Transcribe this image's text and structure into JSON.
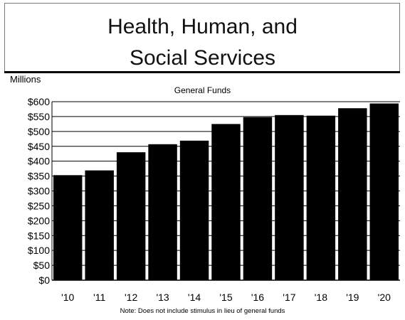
{
  "header": {
    "title_line1": "Health, Human, and",
    "title_line2": "Social Services"
  },
  "chart_data": {
    "type": "bar",
    "title": "General Funds",
    "ylabel": "Millions",
    "xlabel": "",
    "categories": [
      "'10",
      "'11",
      "'12",
      "'13",
      "'14",
      "'15",
      "'16",
      "'17",
      "'18",
      "'19",
      "'20"
    ],
    "values": [
      353,
      369,
      430,
      457,
      469,
      525,
      548,
      555,
      553,
      578,
      594
    ],
    "ylim": [
      0,
      600
    ],
    "yticks": [
      0,
      50,
      100,
      150,
      200,
      250,
      300,
      350,
      400,
      450,
      500,
      550,
      600
    ],
    "ytick_labels": [
      "$0",
      "$50",
      "$100",
      "$150",
      "$200",
      "$250",
      "$300",
      "$350",
      "$400",
      "$450",
      "$500",
      "$550",
      "$600"
    ],
    "grid": true,
    "bar_color": "#000000"
  },
  "footer": {
    "note": "Note:  Does not include stimulus in lieu of general funds"
  }
}
